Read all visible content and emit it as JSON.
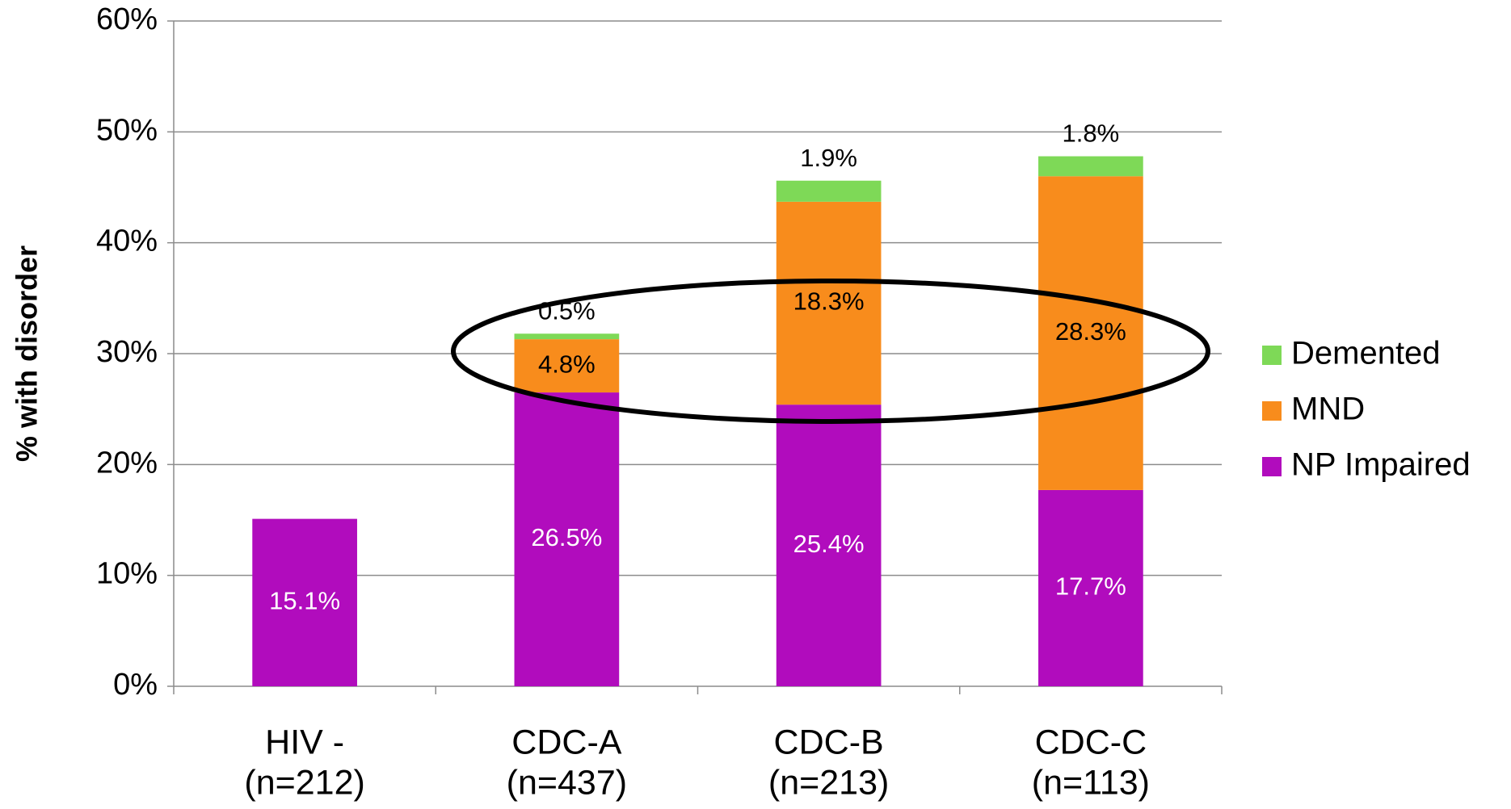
{
  "chart_data": {
    "type": "stacked_bar",
    "y_label": "% with disorder",
    "categories": [
      [
        "HIV -",
        "(n=212)"
      ],
      [
        "CDC-A",
        "(n=437)"
      ],
      [
        "CDC-B",
        "(n=213)"
      ],
      [
        "CDC-C",
        "(n=113)"
      ]
    ],
    "series": [
      {
        "name": "NP Impaired",
        "color": "#b10cbd",
        "values": [
          15.1,
          26.5,
          25.4,
          17.7
        ],
        "value_labels": [
          "15.1%",
          "26.5%",
          "25.4%",
          "17.7%"
        ]
      },
      {
        "name": "MND",
        "color": "#f88c1c",
        "values": [
          null,
          4.8,
          18.3,
          28.3
        ],
        "value_labels": [
          null,
          "4.8%",
          "18.3%",
          "28.3%"
        ]
      },
      {
        "name": "Demented",
        "color": "#7ed957",
        "values": [
          null,
          0.5,
          1.9,
          1.8
        ],
        "value_labels": [
          null,
          "0.5%",
          "1.9%",
          "1.8%"
        ]
      }
    ],
    "ylim": [
      0,
      60
    ],
    "yticks": [
      {
        "value": 0,
        "label": "0%"
      },
      {
        "value": 10,
        "label": "10%"
      },
      {
        "value": 20,
        "label": "20%"
      },
      {
        "value": 30,
        "label": "30%"
      },
      {
        "value": 40,
        "label": "40%"
      },
      {
        "value": 50,
        "label": "50%"
      },
      {
        "value": 60,
        "label": "60%"
      }
    ],
    "grid": true,
    "legend": "right"
  }
}
